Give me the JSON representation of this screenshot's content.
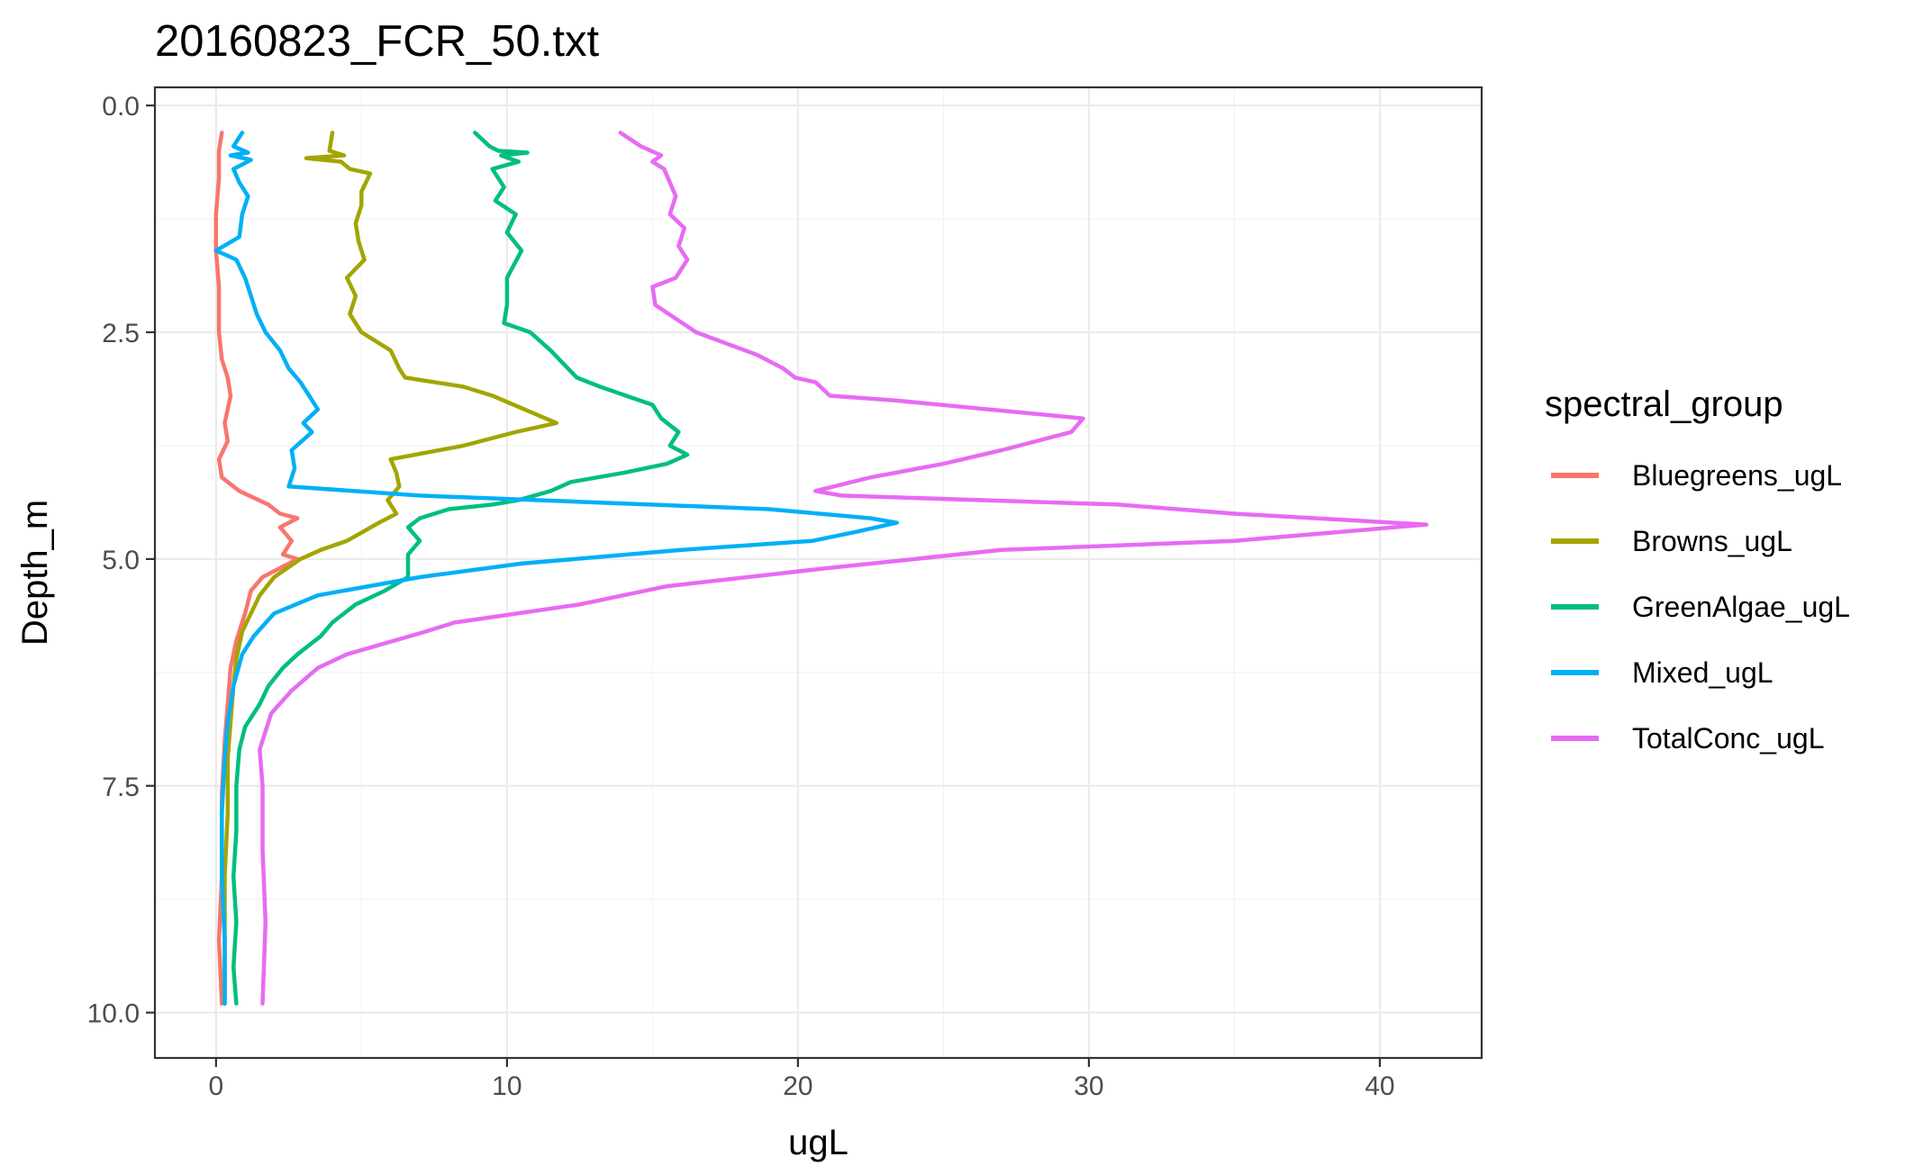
{
  "chart_data": {
    "type": "line",
    "title": "20160823_FCR_50.txt",
    "xlabel": "ugL",
    "ylabel": "Depth_m",
    "xlim": [
      -2.1,
      43.5
    ],
    "ylim": [
      10.5,
      -0.2
    ],
    "y_reversed": true,
    "x_ticks": [
      0,
      10,
      20,
      30,
      40
    ],
    "x_tick_labels": [
      "0",
      "10",
      "20",
      "30",
      "40"
    ],
    "y_ticks": [
      0,
      2.5,
      5,
      7.5,
      10
    ],
    "y_tick_labels": [
      "0.0",
      "2.5",
      "5.0",
      "7.5",
      "10.0"
    ],
    "grid": true,
    "legend": {
      "title": "spectral_group",
      "position": "right"
    },
    "series": [
      {
        "name": "Bluegreens_ugL",
        "color": "#F8766D",
        "points": [
          [
            0.2,
            0.3
          ],
          [
            0.1,
            0.5
          ],
          [
            0.1,
            0.8
          ],
          [
            0.0,
            1.2
          ],
          [
            0.0,
            1.6
          ],
          [
            0.1,
            2.0
          ],
          [
            0.1,
            2.5
          ],
          [
            0.2,
            2.8
          ],
          [
            0.4,
            3.0
          ],
          [
            0.5,
            3.2
          ],
          [
            0.3,
            3.5
          ],
          [
            0.4,
            3.7
          ],
          [
            0.1,
            3.9
          ],
          [
            0.2,
            4.1
          ],
          [
            0.8,
            4.25
          ],
          [
            1.8,
            4.4
          ],
          [
            2.2,
            4.5
          ],
          [
            2.8,
            4.55
          ],
          [
            2.2,
            4.65
          ],
          [
            2.6,
            4.8
          ],
          [
            2.3,
            4.95
          ],
          [
            2.8,
            5.0
          ],
          [
            1.6,
            5.2
          ],
          [
            1.2,
            5.35
          ],
          [
            1.0,
            5.6
          ],
          [
            0.7,
            5.9
          ],
          [
            0.5,
            6.2
          ],
          [
            0.4,
            6.6
          ],
          [
            0.3,
            7.0
          ],
          [
            0.2,
            7.6
          ],
          [
            0.2,
            8.5
          ],
          [
            0.1,
            9.2
          ],
          [
            0.2,
            9.9
          ]
        ]
      },
      {
        "name": "Browns_ugL",
        "color": "#A3A500",
        "points": [
          [
            4.0,
            0.3
          ],
          [
            3.9,
            0.5
          ],
          [
            4.4,
            0.55
          ],
          [
            3.1,
            0.58
          ],
          [
            4.3,
            0.62
          ],
          [
            4.6,
            0.7
          ],
          [
            5.3,
            0.75
          ],
          [
            5.0,
            0.95
          ],
          [
            5.0,
            1.1
          ],
          [
            4.8,
            1.3
          ],
          [
            4.9,
            1.5
          ],
          [
            5.1,
            1.7
          ],
          [
            4.5,
            1.9
          ],
          [
            4.8,
            2.1
          ],
          [
            4.6,
            2.3
          ],
          [
            5.0,
            2.5
          ],
          [
            6.0,
            2.7
          ],
          [
            6.3,
            2.9
          ],
          [
            6.5,
            3.0
          ],
          [
            8.5,
            3.1
          ],
          [
            9.5,
            3.2
          ],
          [
            11.7,
            3.5
          ],
          [
            10.3,
            3.6
          ],
          [
            8.5,
            3.75
          ],
          [
            6.0,
            3.9
          ],
          [
            6.2,
            4.05
          ],
          [
            6.3,
            4.2
          ],
          [
            5.9,
            4.35
          ],
          [
            6.2,
            4.5
          ],
          [
            5.6,
            4.6
          ],
          [
            4.5,
            4.8
          ],
          [
            3.6,
            4.9
          ],
          [
            2.9,
            5.0
          ],
          [
            2.0,
            5.2
          ],
          [
            1.5,
            5.4
          ],
          [
            1.2,
            5.6
          ],
          [
            0.9,
            5.8
          ],
          [
            0.7,
            6.1
          ],
          [
            0.6,
            6.4
          ],
          [
            0.5,
            6.8
          ],
          [
            0.4,
            7.2
          ],
          [
            0.4,
            7.8
          ],
          [
            0.3,
            8.5
          ],
          [
            0.3,
            9.2
          ],
          [
            0.3,
            9.9
          ]
        ]
      },
      {
        "name": "GreenAlgae_ugL",
        "color": "#00BF7D",
        "points": [
          [
            8.9,
            0.3
          ],
          [
            9.4,
            0.45
          ],
          [
            9.7,
            0.5
          ],
          [
            10.7,
            0.52
          ],
          [
            9.8,
            0.55
          ],
          [
            10.4,
            0.62
          ],
          [
            9.5,
            0.7
          ],
          [
            9.9,
            0.9
          ],
          [
            9.6,
            1.05
          ],
          [
            10.3,
            1.2
          ],
          [
            10.0,
            1.4
          ],
          [
            10.5,
            1.6
          ],
          [
            10.0,
            1.9
          ],
          [
            10.0,
            2.2
          ],
          [
            9.9,
            2.4
          ],
          [
            10.8,
            2.5
          ],
          [
            11.5,
            2.7
          ],
          [
            12.4,
            3.0
          ],
          [
            13.2,
            3.1
          ],
          [
            15.0,
            3.3
          ],
          [
            15.3,
            3.45
          ],
          [
            15.9,
            3.6
          ],
          [
            15.6,
            3.75
          ],
          [
            16.2,
            3.85
          ],
          [
            15.5,
            3.95
          ],
          [
            14.0,
            4.05
          ],
          [
            12.2,
            4.15
          ],
          [
            11.5,
            4.25
          ],
          [
            10.4,
            4.35
          ],
          [
            9.5,
            4.4
          ],
          [
            8.0,
            4.45
          ],
          [
            7.0,
            4.55
          ],
          [
            6.6,
            4.65
          ],
          [
            7.0,
            4.8
          ],
          [
            6.6,
            4.95
          ],
          [
            6.6,
            5.1
          ],
          [
            6.6,
            5.2
          ],
          [
            5.8,
            5.35
          ],
          [
            4.8,
            5.5
          ],
          [
            4.0,
            5.7
          ],
          [
            3.6,
            5.85
          ],
          [
            2.8,
            6.05
          ],
          [
            2.3,
            6.2
          ],
          [
            1.8,
            6.4
          ],
          [
            1.5,
            6.6
          ],
          [
            1.0,
            6.85
          ],
          [
            0.8,
            7.1
          ],
          [
            0.7,
            7.5
          ],
          [
            0.7,
            8.0
          ],
          [
            0.6,
            8.5
          ],
          [
            0.7,
            9.0
          ],
          [
            0.6,
            9.5
          ],
          [
            0.7,
            9.9
          ]
        ]
      },
      {
        "name": "Mixed_ugL",
        "color": "#00B0F6",
        "points": [
          [
            0.9,
            0.3
          ],
          [
            0.6,
            0.45
          ],
          [
            1.1,
            0.52
          ],
          [
            0.5,
            0.55
          ],
          [
            1.2,
            0.6
          ],
          [
            0.6,
            0.7
          ],
          [
            0.8,
            0.85
          ],
          [
            1.1,
            1.0
          ],
          [
            0.9,
            1.2
          ],
          [
            0.8,
            1.45
          ],
          [
            0.0,
            1.6
          ],
          [
            0.7,
            1.7
          ],
          [
            1.0,
            1.9
          ],
          [
            1.2,
            2.1
          ],
          [
            1.4,
            2.3
          ],
          [
            1.7,
            2.5
          ],
          [
            2.2,
            2.7
          ],
          [
            2.5,
            2.9
          ],
          [
            2.9,
            3.05
          ],
          [
            3.2,
            3.2
          ],
          [
            3.5,
            3.35
          ],
          [
            3.0,
            3.5
          ],
          [
            3.3,
            3.6
          ],
          [
            2.6,
            3.8
          ],
          [
            2.7,
            4.0
          ],
          [
            2.5,
            4.2
          ],
          [
            7.0,
            4.3
          ],
          [
            19.0,
            4.45
          ],
          [
            22.5,
            4.55
          ],
          [
            23.4,
            4.6
          ],
          [
            22.0,
            4.7
          ],
          [
            20.5,
            4.8
          ],
          [
            16.0,
            4.9
          ],
          [
            10.5,
            5.05
          ],
          [
            7.0,
            5.2
          ],
          [
            3.5,
            5.4
          ],
          [
            2.0,
            5.6
          ],
          [
            1.3,
            5.85
          ],
          [
            0.9,
            6.05
          ],
          [
            0.6,
            6.4
          ],
          [
            0.4,
            6.8
          ],
          [
            0.3,
            7.2
          ],
          [
            0.2,
            7.8
          ],
          [
            0.2,
            8.5
          ],
          [
            0.3,
            9.2
          ],
          [
            0.3,
            9.9
          ]
        ]
      },
      {
        "name": "TotalConc_ugL",
        "color": "#E76BF3",
        "points": [
          [
            13.9,
            0.3
          ],
          [
            14.6,
            0.45
          ],
          [
            15.3,
            0.55
          ],
          [
            15.0,
            0.62
          ],
          [
            15.4,
            0.7
          ],
          [
            15.6,
            0.85
          ],
          [
            15.8,
            1.0
          ],
          [
            15.6,
            1.2
          ],
          [
            16.1,
            1.35
          ],
          [
            15.9,
            1.55
          ],
          [
            16.2,
            1.7
          ],
          [
            15.8,
            1.9
          ],
          [
            15.0,
            2.0
          ],
          [
            15.1,
            2.2
          ],
          [
            16.5,
            2.5
          ],
          [
            18.6,
            2.75
          ],
          [
            19.5,
            2.9
          ],
          [
            19.9,
            3.0
          ],
          [
            20.6,
            3.05
          ],
          [
            21.1,
            3.2
          ],
          [
            23.3,
            3.25
          ],
          [
            29.8,
            3.45
          ],
          [
            29.4,
            3.6
          ],
          [
            27.0,
            3.8
          ],
          [
            25.0,
            3.95
          ],
          [
            22.5,
            4.1
          ],
          [
            20.6,
            4.25
          ],
          [
            21.5,
            4.3
          ],
          [
            31.0,
            4.4
          ],
          [
            35.0,
            4.5
          ],
          [
            40.5,
            4.6
          ],
          [
            41.6,
            4.62
          ],
          [
            35.0,
            4.8
          ],
          [
            27.0,
            4.9
          ],
          [
            21.0,
            5.1
          ],
          [
            15.5,
            5.3
          ],
          [
            12.5,
            5.5
          ],
          [
            8.2,
            5.7
          ],
          [
            7.2,
            5.8
          ],
          [
            4.5,
            6.05
          ],
          [
            3.5,
            6.2
          ],
          [
            2.6,
            6.45
          ],
          [
            1.9,
            6.7
          ],
          [
            1.5,
            7.1
          ],
          [
            1.6,
            7.5
          ],
          [
            1.6,
            8.2
          ],
          [
            1.7,
            9.0
          ],
          [
            1.6,
            9.9
          ]
        ]
      }
    ]
  }
}
